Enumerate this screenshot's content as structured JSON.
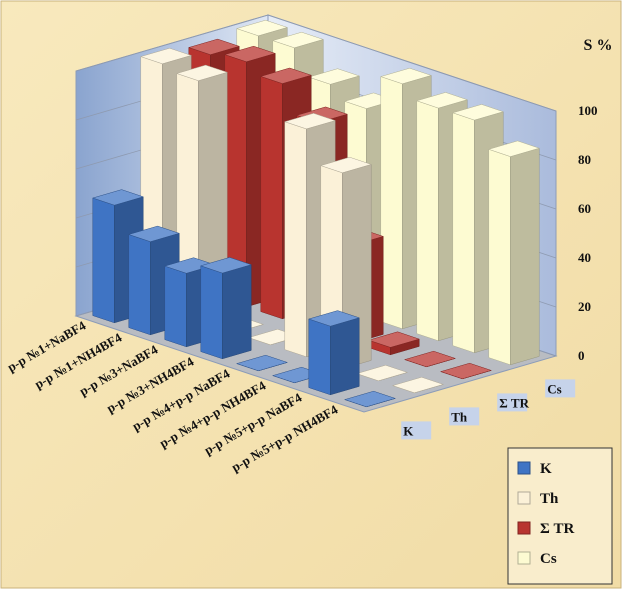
{
  "chart_data": {
    "type": "bar3d",
    "ylabel": "S %",
    "categories": [
      "р-р №1+NaBF4",
      "р-р №1+NH4BF4",
      "р-р №3+NaBF4",
      "р-р №3+NH4BF4",
      "р-р №4+р-р NaBF4",
      "р-р №4+р-р NH4BF4",
      "р-р №5+р-р NaBF4",
      "р-р №5+р-р NH4BF4"
    ],
    "series": [
      {
        "name": "K",
        "color": "#3f74c4",
        "values": [
          48,
          38,
          30,
          35,
          0,
          0,
          28,
          0
        ]
      },
      {
        "name": "Th",
        "color": "#fbf1d8",
        "values": [
          100,
          98,
          0,
          0,
          93,
          80,
          0,
          0
        ]
      },
      {
        "name": "Σ TR",
        "color": "#b8342f",
        "values": [
          98,
          100,
          96,
          85,
          40,
          3,
          0,
          0
        ]
      },
      {
        "name": "Cs",
        "color": "#fdfbd2",
        "values": [
          100,
          100,
          90,
          85,
          100,
          95,
          95,
          85
        ]
      }
    ],
    "ylim": [
      0,
      100
    ],
    "yticks": [
      0,
      20,
      40,
      60,
      80,
      100
    ],
    "grid": true,
    "legend": "lower right"
  }
}
